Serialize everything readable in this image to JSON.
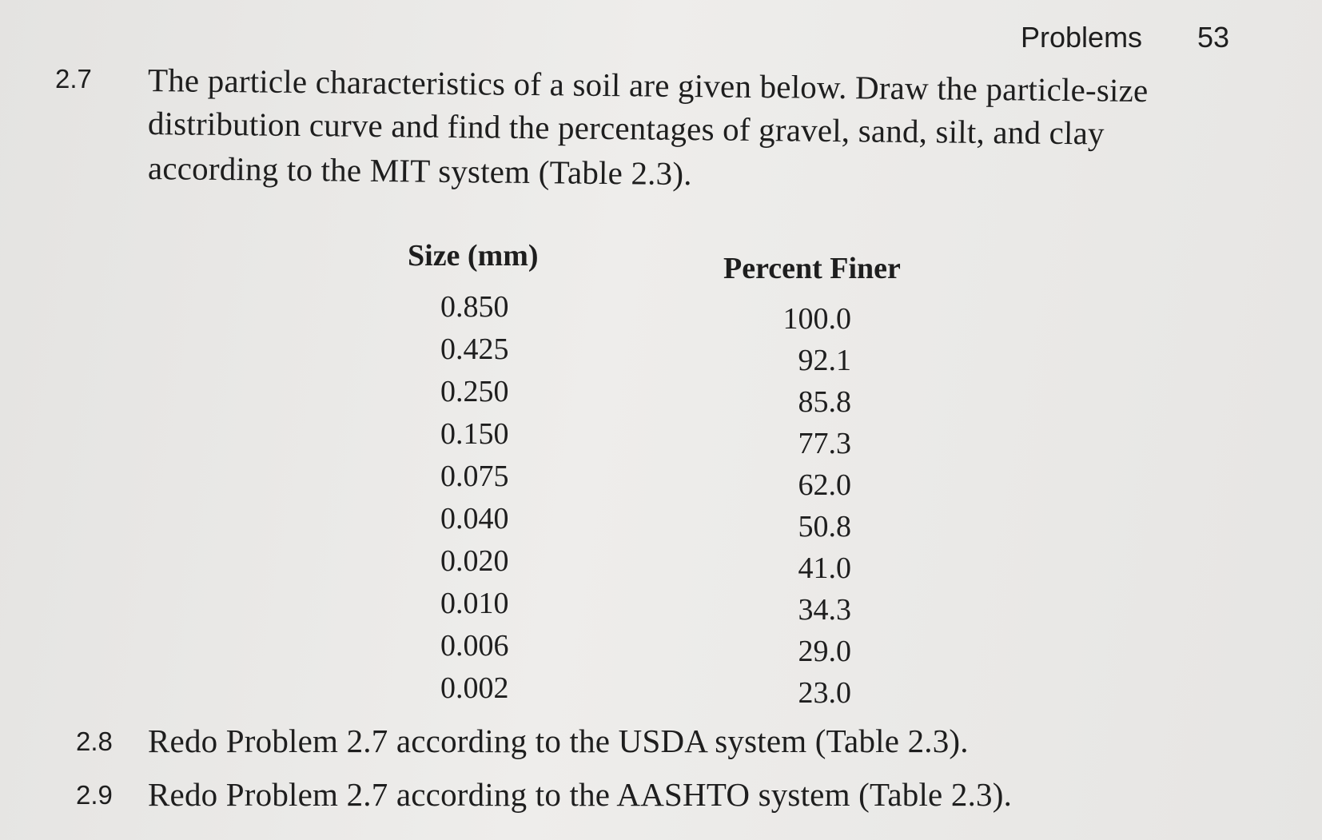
{
  "header": {
    "title": "Problems",
    "page": "53"
  },
  "problems": [
    {
      "number": "2.7",
      "lines": [
        "The particle characteristics of a soil are given below. Draw the particle-size",
        "distribution curve and find the percentages of gravel, sand, silt, and clay",
        "according to the MIT system (Table 2.3)."
      ]
    },
    {
      "number": "2.8",
      "lines": [
        "Redo Problem 2.7 according to the USDA system (Table 2.3)."
      ]
    },
    {
      "number": "2.9",
      "lines": [
        "Redo Problem 2.7 according to the AASHTO system (Table 2.3)."
      ]
    }
  ],
  "table": {
    "headers": [
      "Size (mm)",
      "Percent Finer"
    ],
    "rows": [
      [
        "0.850",
        "100.0"
      ],
      [
        "0.425",
        "92.1"
      ],
      [
        "0.250",
        "85.8"
      ],
      [
        "0.150",
        "77.3"
      ],
      [
        "0.075",
        "62.0"
      ],
      [
        "0.040",
        "50.8"
      ],
      [
        "0.020",
        "41.0"
      ],
      [
        "0.010",
        "34.3"
      ],
      [
        "0.006",
        "29.0"
      ],
      [
        "0.002",
        "23.0"
      ]
    ]
  }
}
